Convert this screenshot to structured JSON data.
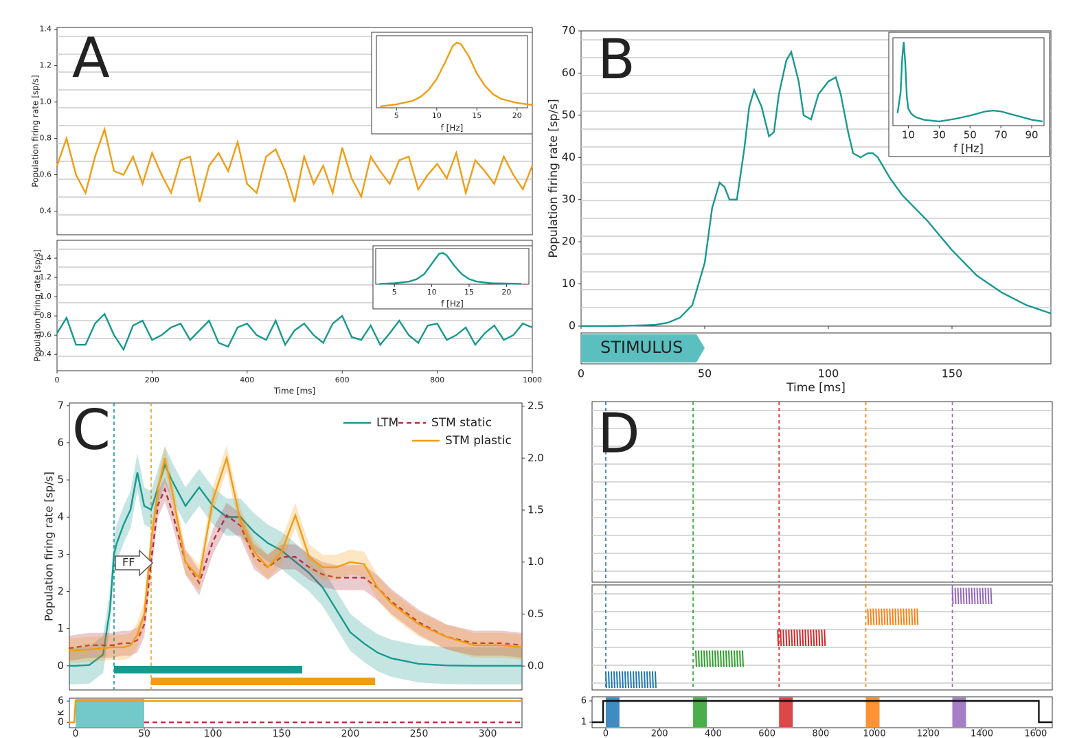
{
  "chart_data": [
    {
      "type": "line",
      "panel": "A",
      "ylabel": "Population firing rate [sp/s]",
      "axis_color": "#f39c12",
      "raster": true,
      "xlim": [
        0,
        1000
      ],
      "ylim": [
        0.27,
        1.41
      ],
      "yticks": [
        0.4,
        0.6,
        0.8,
        {
          "value": 1.0,
          "label": "1.0"
        },
        1.2,
        1.4
      ],
      "x": [
        0,
        20,
        40,
        60,
        80,
        100,
        120,
        140,
        160,
        180,
        200,
        220,
        240,
        260,
        280,
        300,
        320,
        340,
        360,
        380,
        400,
        420,
        440,
        460,
        480,
        500,
        520,
        540,
        560,
        580,
        600,
        620,
        640,
        660,
        680,
        700,
        720,
        740,
        760,
        780,
        800,
        820,
        840,
        860,
        880,
        900,
        920,
        940,
        960,
        980,
        1000
      ],
      "series": [
        {
          "color": "#f39c12",
          "values": [
            0.65,
            0.8,
            0.6,
            0.5,
            0.7,
            0.85,
            0.62,
            0.6,
            0.7,
            0.55,
            0.72,
            0.6,
            0.5,
            0.68,
            0.7,
            0.45,
            0.65,
            0.72,
            0.62,
            0.78,
            0.55,
            0.5,
            0.7,
            0.74,
            0.62,
            0.45,
            0.7,
            0.55,
            0.65,
            0.5,
            0.75,
            0.58,
            0.48,
            0.7,
            0.62,
            0.55,
            0.68,
            0.7,
            0.52,
            0.6,
            0.66,
            0.58,
            0.72,
            0.5,
            0.68,
            0.62,
            0.55,
            0.7,
            0.6,
            0.52,
            0.65
          ]
        }
      ],
      "inset": {
        "type": "line",
        "xlabel": "f [Hz]",
        "xlim": [
          2.5,
          21.3
        ],
        "ylim": [
          0,
          1.05
        ],
        "xticks": [
          5,
          10,
          15,
          20
        ],
        "series": [
          {
            "color": "#f39c12",
            "x": [
              3,
              5,
              7,
              8,
              9,
              10,
              11,
              12,
              12.5,
              13,
              14,
              15,
              16,
              17,
              18,
              20,
              22
            ],
            "values": [
              0.02,
              0.05,
              0.1,
              0.16,
              0.26,
              0.42,
              0.65,
              0.9,
              0.95,
              0.93,
              0.75,
              0.5,
              0.32,
              0.2,
              0.13,
              0.07,
              0.04
            ]
          }
        ]
      }
    },
    {
      "type": "line",
      "ylabel": "Population firing rate [sp/s]",
      "axis_color": "#17998f",
      "raster": true,
      "xlabel": "Time [ms]",
      "xlim": [
        0,
        1000
      ],
      "ylim": [
        0.23,
        1.586
      ],
      "xticks": [
        0,
        200,
        400,
        600,
        800,
        1000
      ],
      "yticks": [
        0.4,
        0.6,
        0.8,
        {
          "value": 1.0,
          "label": "1.0"
        },
        1.2,
        1.4
      ],
      "x": [
        0,
        20,
        40,
        60,
        80,
        100,
        120,
        140,
        160,
        180,
        200,
        220,
        240,
        260,
        280,
        300,
        320,
        340,
        360,
        380,
        400,
        420,
        440,
        460,
        480,
        500,
        520,
        540,
        560,
        580,
        600,
        620,
        640,
        660,
        680,
        700,
        720,
        740,
        760,
        780,
        800,
        820,
        840,
        860,
        880,
        900,
        920,
        940,
        960,
        980,
        1000
      ],
      "series": [
        {
          "color": "#17998f",
          "values": [
            0.62,
            0.78,
            0.5,
            0.5,
            0.72,
            0.82,
            0.6,
            0.45,
            0.7,
            0.75,
            0.55,
            0.6,
            0.68,
            0.72,
            0.55,
            0.65,
            0.75,
            0.52,
            0.48,
            0.68,
            0.72,
            0.6,
            0.55,
            0.75,
            0.5,
            0.65,
            0.72,
            0.6,
            0.52,
            0.72,
            0.8,
            0.58,
            0.55,
            0.7,
            0.5,
            0.62,
            0.75,
            0.6,
            0.52,
            0.7,
            0.72,
            0.55,
            0.6,
            0.68,
            0.5,
            0.62,
            0.7,
            0.55,
            0.6,
            0.72,
            0.68
          ]
        }
      ],
      "inset": {
        "type": "line",
        "xlabel": "f [Hz]",
        "xlim": [
          2.5,
          23
        ],
        "ylim": [
          0,
          1.05
        ],
        "xticks": [
          5,
          10,
          15,
          20
        ],
        "series": [
          {
            "color": "#17998f",
            "x": [
              3,
              5,
              7,
              8,
              9,
              10,
              11,
              11.5,
              12,
              13,
              14,
              15,
              16,
              18,
              20,
              22
            ],
            "values": [
              0.01,
              0.03,
              0.08,
              0.15,
              0.3,
              0.6,
              0.9,
              0.92,
              0.85,
              0.55,
              0.3,
              0.15,
              0.08,
              0.03,
              0.02,
              0.01
            ]
          }
        ]
      }
    },
    {
      "type": "line",
      "panel": "B",
      "ylabel": "Population firing rate [sp/s]",
      "axis_color": "#17998f",
      "raster": true,
      "xlabel": "Time [ms]",
      "xlim": [
        0,
        190
      ],
      "ylim": [
        0,
        70
      ],
      "xticks": [
        0,
        50,
        100,
        150
      ],
      "yticks": [
        0,
        10,
        20,
        30,
        40,
        50,
        60,
        70
      ],
      "stimulus": {
        "label": "STIMULUS",
        "start": 0,
        "end": 50,
        "color": "#5bbfbf"
      },
      "series": [
        {
          "color": "#17998f",
          "x": [
            0,
            10,
            20,
            30,
            35,
            40,
            45,
            50,
            53,
            56,
            58,
            60,
            63,
            66,
            68,
            70,
            73,
            76,
            78,
            80,
            83,
            85,
            88,
            90,
            93,
            96,
            100,
            103,
            105,
            108,
            110,
            113,
            116,
            118,
            120,
            125,
            130,
            140,
            150,
            160,
            170,
            180,
            190
          ],
          "values": [
            0,
            0,
            0.1,
            0.3,
            0.8,
            2,
            5,
            15,
            28,
            34,
            33,
            30,
            30,
            42,
            52,
            56,
            52,
            45,
            46,
            55,
            63,
            65,
            58,
            50,
            49,
            55,
            58,
            59,
            55,
            46,
            41,
            40,
            41,
            41,
            40,
            35,
            31,
            25,
            18,
            12,
            8,
            5,
            3
          ]
        }
      ],
      "inset": {
        "type": "line",
        "xlabel": "f [Hz]",
        "xlim": [
          0,
          98
        ],
        "ylim": [
          0,
          1.05
        ],
        "xticks": [
          10,
          30,
          50,
          70,
          90
        ],
        "series": [
          {
            "color": "#17998f",
            "x": [
              3,
              5,
              6,
              7,
              8,
              9,
              10,
              12,
              15,
              20,
              30,
              40,
              50,
              60,
              65,
              70,
              80,
              90,
              97
            ],
            "values": [
              0.15,
              0.4,
              0.8,
              1.0,
              0.75,
              0.35,
              0.2,
              0.14,
              0.1,
              0.07,
              0.05,
              0.08,
              0.12,
              0.17,
              0.18,
              0.17,
              0.12,
              0.07,
              0.05
            ]
          }
        ]
      }
    },
    {
      "type": "line",
      "panel": "C",
      "ylabel": "Population firing rate [sp/s]",
      "axis_color": "#17998f",
      "y2_color": "#f39c12",
      "legend": "upper right",
      "annotation": "FF",
      "xlim": [
        -4.5,
        325
      ],
      "ylim": [
        -0.65,
        7.07
      ],
      "y2lim": [
        -0.23,
        2.53
      ],
      "yticks": [
        0,
        1,
        2,
        3,
        4,
        5,
        6,
        7
      ],
      "y2ticks": [
        {
          "value": 0,
          "label": "0.0"
        },
        {
          "value": 0.5,
          "label": "0.5"
        },
        {
          "value": 1,
          "label": "1.0"
        },
        {
          "value": 1.5,
          "label": "1.5"
        },
        {
          "value": 2,
          "label": "2.0"
        },
        {
          "value": 2.5,
          "label": "2.5"
        }
      ],
      "vlines": [
        {
          "x": 28,
          "color": "#17998f"
        },
        {
          "x": 55,
          "color": "#f39c12"
        }
      ],
      "bars": [
        {
          "start": 28,
          "end": 165,
          "color": "#17998f"
        },
        {
          "start": 55,
          "end": 218,
          "color": "#f39c12"
        }
      ],
      "x": [
        -5,
        0,
        10,
        20,
        25,
        28,
        30,
        35,
        40,
        45,
        50,
        55,
        60,
        65,
        70,
        80,
        90,
        100,
        110,
        120,
        130,
        140,
        150,
        160,
        170,
        180,
        190,
        200,
        210,
        220,
        230,
        250,
        270,
        290,
        310,
        325
      ],
      "series": [
        {
          "name": "LTM",
          "color": "#17998f",
          "spread": 0.5,
          "values": [
            0,
            0,
            0.02,
            0.3,
            1.5,
            3,
            3.3,
            3.8,
            4.2,
            5.2,
            4.3,
            4.2,
            4.8,
            5.4,
            5,
            4.3,
            4.8,
            4.3,
            4,
            4,
            3.6,
            3.3,
            3.1,
            2.8,
            2.5,
            2.1,
            1.5,
            0.9,
            0.6,
            0.35,
            0.2,
            0.05,
            0.01,
            0,
            0,
            0
          ]
        },
        {
          "name": "STM static",
          "color": "#b03040",
          "dash": true,
          "axis": "y2",
          "spread": 0.12,
          "values": [
            0.17,
            0.18,
            0.2,
            0.2,
            0.2,
            0.2,
            0.21,
            0.22,
            0.22,
            0.25,
            0.4,
            1.0,
            1.55,
            1.7,
            1.5,
            1.0,
            0.8,
            1.2,
            1.45,
            1.35,
            1.05,
            0.95,
            1.05,
            1.05,
            0.95,
            0.88,
            0.85,
            0.85,
            0.85,
            0.75,
            0.62,
            0.42,
            0.28,
            0.22,
            0.22,
            0.2
          ]
        },
        {
          "name": "STM plastic",
          "color": "#f39c12",
          "axis": "y2",
          "spread": 0.12,
          "values": [
            0.15,
            0.15,
            0.16,
            0.17,
            0.18,
            0.18,
            0.18,
            0.18,
            0.2,
            0.3,
            0.5,
            1.2,
            1.7,
            2.0,
            1.7,
            1.0,
            0.85,
            1.6,
            2.0,
            1.4,
            1.1,
            0.95,
            1.1,
            1.45,
            1.05,
            0.95,
            0.95,
            1.0,
            0.98,
            0.75,
            0.6,
            0.4,
            0.28,
            0.2,
            0.2,
            0.18
          ]
        }
      ]
    },
    {
      "type": "line",
      "ylabel": "κ",
      "xlim": [
        -4.5,
        325
      ],
      "ylim": [
        -1.5,
        6.8
      ],
      "yticks": [
        0,
        6
      ],
      "xticks": [
        0,
        50,
        100,
        150,
        200,
        250,
        300
      ],
      "shades": [
        {
          "start": 0,
          "end": 50,
          "color": "#5bbfbf"
        }
      ],
      "series": [
        {
          "color": "#f39c12",
          "x": [
            -5,
            -1,
            0,
            325
          ],
          "values": [
            0,
            0,
            6,
            6
          ]
        },
        {
          "color": "#b03040",
          "dash": true,
          "x": [
            50,
            325
          ],
          "values": [
            0,
            0
          ]
        }
      ]
    },
    {
      "type": "line",
      "panel": "D",
      "raster": true,
      "xlim": [
        -51,
        1662
      ],
      "ylim": [
        0,
        1
      ],
      "vlines": [
        {
          "x": 0,
          "color": "#1f77b4"
        },
        {
          "x": 325,
          "color": "#2ca02c"
        },
        {
          "x": 645,
          "color": "#d62728"
        },
        {
          "x": 968,
          "color": "#ff7f0e"
        },
        {
          "x": 1290,
          "color": "#9467bd"
        }
      ]
    },
    {
      "type": "line",
      "raster": true,
      "xlim": [
        -51,
        1662
      ],
      "ylim": [
        0,
        1
      ],
      "vlines": [
        {
          "x": 0,
          "color": "#1f77b4"
        },
        {
          "x": 325,
          "color": "#2ca02c"
        },
        {
          "x": 645,
          "color": "#d62728"
        },
        {
          "x": 968,
          "color": "#ff7f0e"
        },
        {
          "x": 1290,
          "color": "#9467bd"
        }
      ],
      "clusters": [
        {
          "start": 0,
          "end": 190,
          "row": 0,
          "color": "#1f77b4"
        },
        {
          "start": 335,
          "end": 515,
          "row": 1,
          "color": "#2ca02c"
        },
        {
          "start": 640,
          "end": 820,
          "row": 2,
          "color": "#d62728"
        },
        {
          "start": 975,
          "end": 1160,
          "row": 3,
          "color": "#ff7f0e"
        },
        {
          "start": 1290,
          "end": 1440,
          "row": 4,
          "color": "#9467bd"
        }
      ]
    },
    {
      "type": "line",
      "xlim": [
        -51,
        1662
      ],
      "ylim": [
        -0.29,
        6.97
      ],
      "yticks": [
        1,
        6
      ],
      "xticks": [
        0,
        200,
        400,
        600,
        800,
        1000,
        1200,
        1400,
        1600
      ],
      "shades": [
        {
          "start": 0,
          "end": 51,
          "color": "#1f77b4"
        },
        {
          "start": 325,
          "end": 376,
          "color": "#2ca02c"
        },
        {
          "start": 645,
          "end": 696,
          "color": "#d62728"
        },
        {
          "start": 968,
          "end": 1019,
          "color": "#ff7f0e"
        },
        {
          "start": 1290,
          "end": 1341,
          "color": "#9467bd"
        }
      ],
      "series": [
        {
          "color": "#111111",
          "x": [
            -51,
            -10,
            -10,
            1612,
            1612,
            1662
          ],
          "values": [
            1,
            1,
            6,
            6,
            1,
            1
          ]
        }
      ]
    }
  ]
}
